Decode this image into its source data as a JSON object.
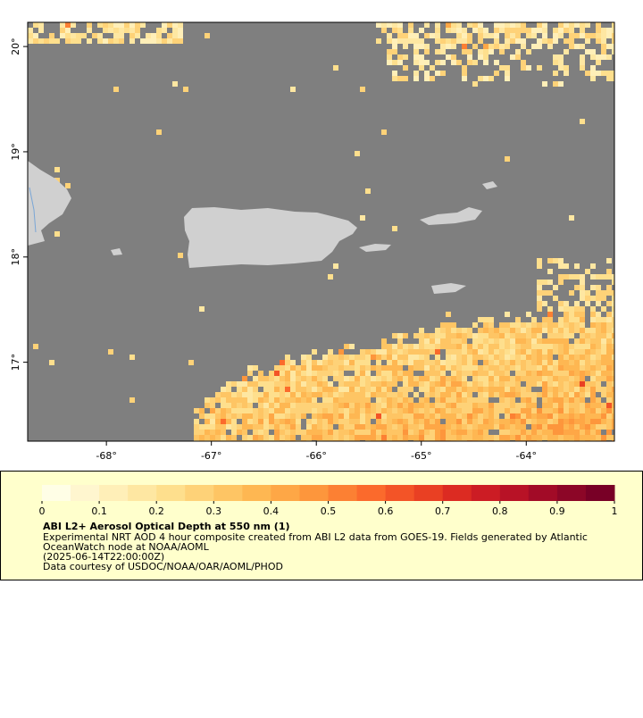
{
  "map": {
    "xlim": [
      -68.75,
      -63.16
    ],
    "ylim": [
      16.25,
      20.23
    ],
    "xticks": [
      {
        "value": -68,
        "label": "-68°"
      },
      {
        "value": -67,
        "label": "-67°"
      },
      {
        "value": -66,
        "label": "-66°"
      },
      {
        "value": -65,
        "label": "-65°"
      },
      {
        "value": -64,
        "label": "-64°"
      }
    ],
    "yticks": [
      {
        "value": 17,
        "label": "17°"
      },
      {
        "value": 18,
        "label": "18°"
      },
      {
        "value": 19,
        "label": "19°"
      },
      {
        "value": 20,
        "label": "20°"
      }
    ]
  },
  "colorbar": {
    "lim": [
      0,
      1
    ],
    "ticks": [
      0,
      0.1,
      0.2,
      0.3,
      0.4,
      0.5,
      0.6,
      0.7,
      0.8,
      0.9,
      1
    ],
    "colors": [
      "#fffee6",
      "#fff6cf",
      "#ffefb8",
      "#fee7a2",
      "#fedf8d",
      "#fed278",
      "#fec564",
      "#feb752",
      "#fea746",
      "#fd963c",
      "#fc8033",
      "#fb6a2c",
      "#f35427",
      "#e94023",
      "#dc2b22",
      "#cc1c24",
      "#b81226",
      "#a20b27",
      "#8c0627",
      "#780026"
    ]
  },
  "legend": {
    "title": "ABI L2+ Aerosol Optical Depth at 550 nm (1)",
    "lines": [
      "Experimental NRT AOD 4 hour composite created from ABI L2 data from GOES-19. Fields generated by Atlantic",
      "OceanWatch node at NOAA/AOML",
      "(2025-06-14T22:00:00Z)",
      "Data courtesy of USDOC/NOAA/OAR/AOML/PHOD"
    ]
  }
}
